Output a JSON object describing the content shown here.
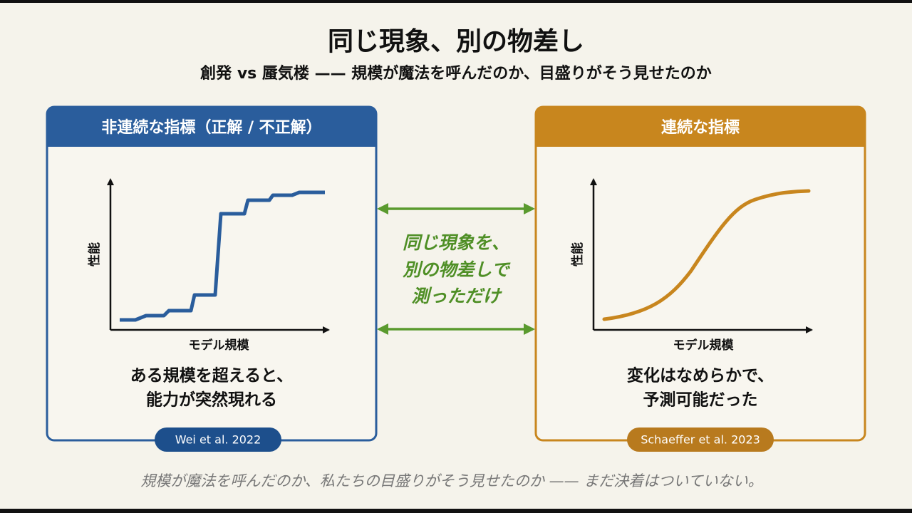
{
  "title": "同じ現象、別の物差し",
  "subtitle": "創発 vs 蜃気楼 —— 規模が魔法を呼んだのか、目盛りがそう見せたのか",
  "panels": [
    {
      "header": "非連続な指標（正解 / 不正解）",
      "y_label": "性能",
      "x_label": "モデル規模",
      "caption_lines": [
        "ある規模を超えると、",
        "能力が突然現れる"
      ],
      "citation": "Wei et al. 2022"
    },
    {
      "header": "連続な指標",
      "y_label": "性能",
      "x_label": "モデル規模",
      "caption_lines": [
        "変化はなめらかで、",
        "予測可能だった"
      ],
      "citation": "Schaeffer et al. 2023"
    }
  ],
  "center_note_lines": [
    "同じ現象を、",
    "別の物差しで",
    "測っただけ"
  ],
  "footer": "規模が魔法を呼んだのか、私たちの目盛りがそう見せたのか —— まだ決着はついていない。"
}
